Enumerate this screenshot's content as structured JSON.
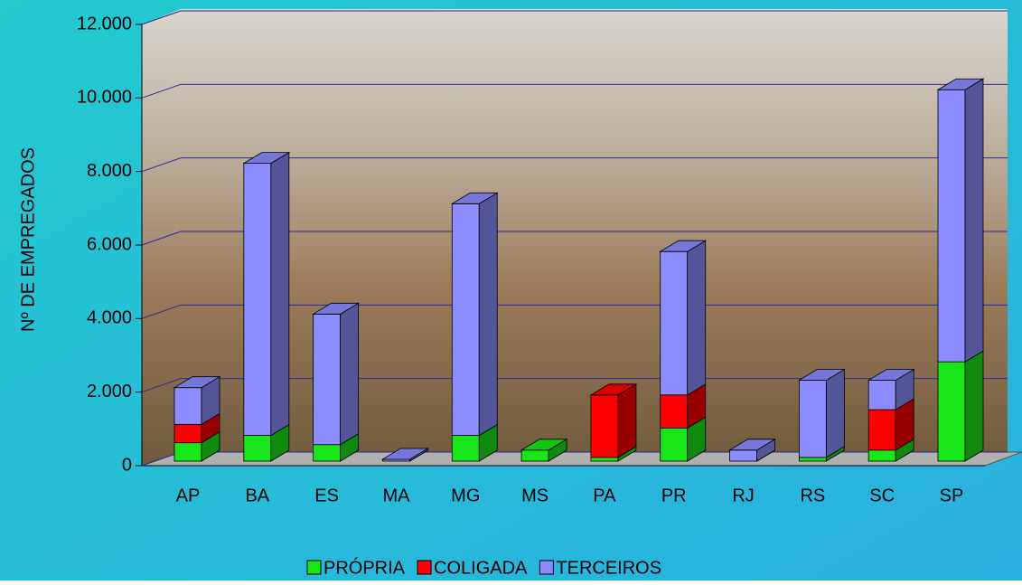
{
  "chart_data": {
    "type": "bar3d_stacked",
    "y_label": "Nº DE EMPREGADOS",
    "categories": [
      "AP",
      "BA",
      "ES",
      "MA",
      "MG",
      "MS",
      "PA",
      "PR",
      "RJ",
      "RS",
      "SC",
      "SP"
    ],
    "series": [
      {
        "name": "PRÓPRIA",
        "color": "#19e619",
        "values": [
          500,
          700,
          450,
          0,
          700,
          300,
          100,
          900,
          0,
          100,
          300,
          2700
        ]
      },
      {
        "name": "COLIGADA",
        "color": "#ff0000",
        "values": [
          500,
          0,
          0,
          0,
          0,
          0,
          1700,
          900,
          0,
          0,
          1100,
          0
        ]
      },
      {
        "name": "TERCEIROS",
        "color": "#8c8cff",
        "values": [
          1000,
          7400,
          3550,
          50,
          6300,
          0,
          0,
          3900,
          300,
          2100,
          800,
          7400
        ]
      }
    ],
    "ylim": [
      0,
      12000
    ],
    "yticks": [
      0,
      {
        "value": 2000,
        "label": "2.000"
      },
      {
        "value": 4000,
        "label": "4.000"
      },
      {
        "value": 6000,
        "label": "6.000"
      },
      {
        "value": 8000,
        "label": "8.000"
      },
      {
        "value": 10000,
        "label": "10.000"
      },
      {
        "value": 12000,
        "label": "12.000"
      }
    ],
    "grid": true,
    "legend": "bottom"
  }
}
